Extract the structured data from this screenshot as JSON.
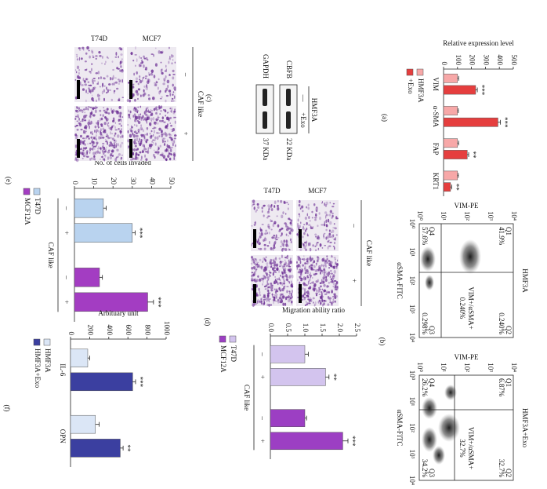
{
  "chart_data": [
    {
      "type": "bar",
      "ylabel": "Relative expression level",
      "categories": [
        "VIM",
        "α-SMA",
        "FAP",
        "KRT1"
      ],
      "group_by": "category",
      "series": [
        {
          "name": "HMF3A",
          "color": "#f7a8a8",
          "values": [
            100,
            100,
            100,
            100
          ],
          "errors": [
            8,
            6,
            8,
            6
          ]
        },
        {
          "name": "+Exo",
          "color": "#e53e3e",
          "values": [
            230,
            390,
            170,
            50
          ],
          "errors": [
            12,
            18,
            10,
            8
          ],
          "annotations": [
            "***",
            "***",
            "**",
            "**"
          ]
        }
      ],
      "ylim": [
        0,
        500
      ],
      "yticks": [
        0,
        100,
        200,
        300,
        400,
        500
      ],
      "legend": "bottom"
    },
    {
      "type": "bar",
      "ylabel": "Migration ability ratio",
      "categories": [
        "–",
        "+"
      ],
      "group_by": "series",
      "group_label": "CAF like",
      "series": [
        {
          "name": "T47D",
          "color": "#d3c4ee",
          "values": [
            1.0,
            1.6
          ],
          "errors": [
            0.1,
            0.1
          ],
          "annotations": [
            null,
            "**"
          ]
        },
        {
          "name": "MCF12A",
          "color": "#9c3fc3",
          "values": [
            1.0,
            2.1
          ],
          "errors": [
            0.05,
            0.15
          ],
          "annotations": [
            null,
            "***"
          ]
        }
      ],
      "ylim": [
        0,
        2.5
      ],
      "yticks": [
        {
          "value": 0,
          "label": "0.0"
        },
        0.5,
        {
          "value": 1,
          "label": "1.0"
        },
        1.5,
        {
          "value": 2,
          "label": "2.0"
        },
        2.5
      ],
      "legend": "bottom"
    },
    {
      "type": "bar",
      "ylabel": "No. of cells invaded",
      "categories": [
        "–",
        "+"
      ],
      "group_by": "series",
      "group_label": "CAF like",
      "series": [
        {
          "name": "T47D",
          "color": "#b9d3ef",
          "values": [
            15,
            30
          ],
          "errors": [
            1.5,
            1.5
          ],
          "annotations": [
            null,
            "***"
          ]
        },
        {
          "name": "MCF12A",
          "color": "#a33dc2",
          "values": [
            13,
            38
          ],
          "errors": [
            1.5,
            3
          ],
          "annotations": [
            null,
            "***"
          ]
        }
      ],
      "ylim": [
        0,
        50
      ],
      "yticks": [
        0,
        10,
        20,
        30,
        40,
        50
      ],
      "legend": "bottom"
    },
    {
      "type": "bar",
      "ylabel": "Arbituary unit",
      "categories": [
        "IL-6",
        "OPN"
      ],
      "group_by": "category",
      "series": [
        {
          "name": "HMF3A",
          "color": "#dbe6f6",
          "values": [
            180,
            260
          ],
          "errors": [
            20,
            40
          ]
        },
        {
          "name": "HMF3A+Exo",
          "color": "#3b3fa0",
          "values": [
            650,
            520
          ],
          "errors": [
            30,
            30
          ],
          "annotations": [
            "***",
            "**"
          ]
        }
      ],
      "ylim": [
        0,
        1000
      ],
      "yticks": [
        0,
        200,
        400,
        600,
        800,
        1000
      ],
      "legend": "bottom"
    }
  ],
  "panel_labels": [
    "(a)",
    "(b)",
    "(c)",
    "(d)",
    "(e)",
    "(f)"
  ],
  "flow_panels": [
    {
      "title": "HMF3A",
      "x_label": "αSMA-FITC",
      "y_label": "VIM-PE",
      "gate_label": "VIM+/αSMA+",
      "gate_value": "0.240%",
      "quadrants": [
        {
          "name": "Q1",
          "value": "41.9%"
        },
        {
          "name": "Q2",
          "value": "0.240%"
        },
        {
          "name": "Q3",
          "value": "0.298%"
        },
        {
          "name": "Q4",
          "value": "57.6%"
        }
      ]
    },
    {
      "title": "HMF3A+Exo",
      "x_label": "αSMA-FITC",
      "y_label": "VIM-PE",
      "gate_label": "VIM+/αSMA+",
      "gate_value": "32.7%",
      "quadrants": [
        {
          "name": "Q1",
          "value": "6.87%"
        },
        {
          "name": "Q2",
          "value": "32.7%"
        },
        {
          "name": "Q3",
          "value": "34.2%"
        },
        {
          "name": "Q4",
          "value": "26.2%"
        }
      ]
    }
  ],
  "flow_axis_ticks": [
    "10⁰",
    "10¹",
    "10²",
    "10³",
    "10⁴"
  ],
  "image_panels": [
    {
      "rows": [
        "MCF7",
        "T74D"
      ],
      "columns": [
        "–",
        "+"
      ],
      "column_title": "CAF like"
    },
    {
      "rows": [
        "MCF7",
        "T47D"
      ],
      "columns": [
        "–",
        "+"
      ],
      "column_title": "CAF like"
    }
  ],
  "blot": {
    "group": "HMF3A",
    "lanes": [
      "—",
      "+Exo"
    ],
    "bands": [
      {
        "name": "CBFB",
        "size": "22 KDa"
      },
      {
        "name": "GAPDH",
        "size": "37 KDa"
      }
    ]
  }
}
